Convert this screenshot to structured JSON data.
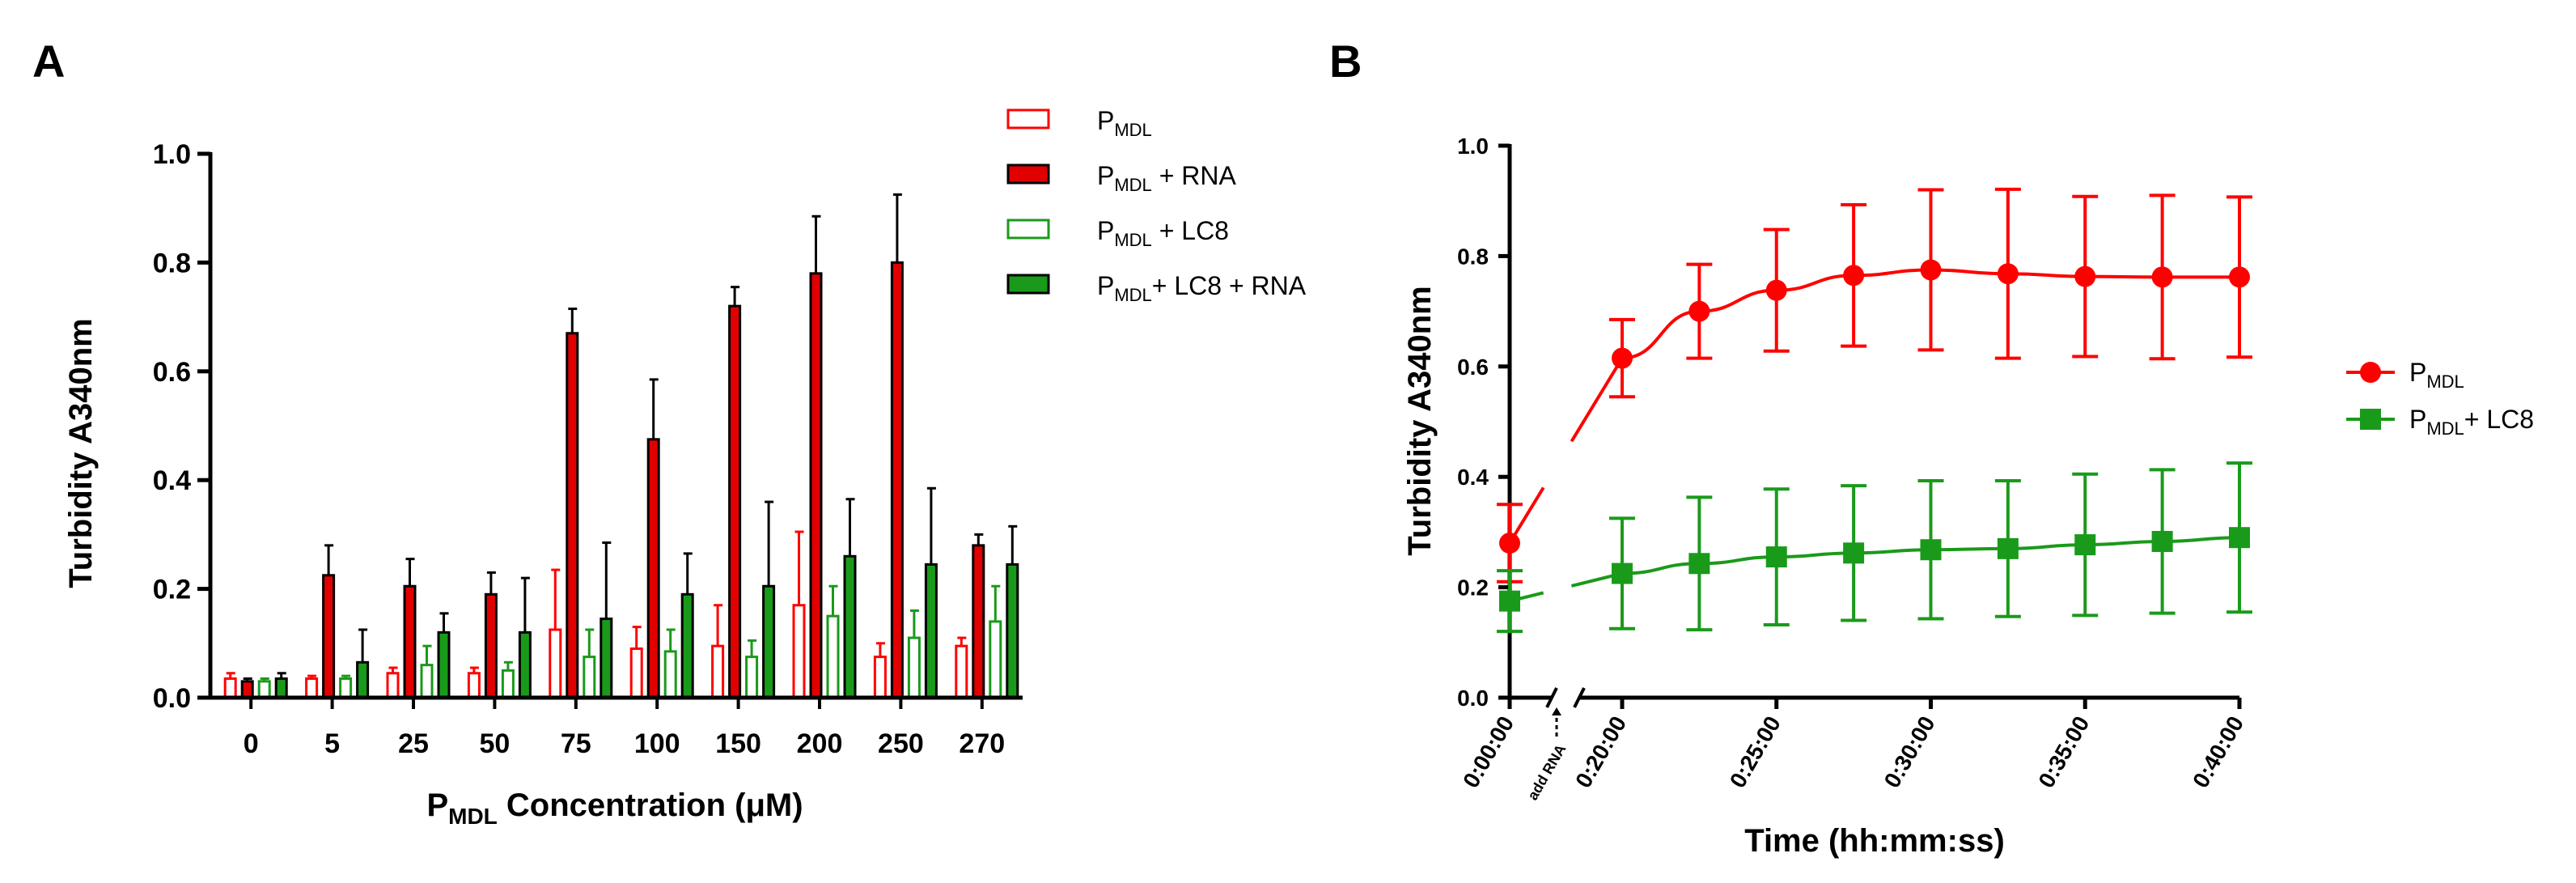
{
  "panel_a_label": "A",
  "panel_b_label": "B",
  "chart_data": [
    {
      "type": "bar",
      "panel": "A",
      "title": "",
      "ylabel": "Turbidity A340nm",
      "xlabel": {
        "main": "P",
        "sub": "MDL",
        "rest": " Concentration (μM)"
      },
      "ylim": [
        0,
        1.0
      ],
      "yticks": [
        "0.0",
        "0.2",
        "0.4",
        "0.6",
        "0.8",
        "1.0"
      ],
      "categories": [
        "0",
        "5",
        "25",
        "50",
        "75",
        "100",
        "150",
        "200",
        "250",
        "270"
      ],
      "series": [
        {
          "name": "P_MDL",
          "label_main": "P",
          "label_sub": "MDL",
          "label_rest": "",
          "color": "#ff0000",
          "filled": false,
          "values": [
            0.035,
            0.035,
            0.045,
            0.045,
            0.125,
            0.09,
            0.095,
            0.17,
            0.075,
            0.095
          ],
          "errors": [
            0.01,
            0.005,
            0.01,
            0.01,
            0.11,
            0.04,
            0.075,
            0.135,
            0.025,
            0.015
          ]
        },
        {
          "name": "P_MDL + RNA",
          "label_main": "P",
          "label_sub": "MDL",
          "label_rest": " + RNA",
          "color": "#e00000",
          "filled": true,
          "values": [
            0.03,
            0.225,
            0.205,
            0.19,
            0.67,
            0.475,
            0.72,
            0.78,
            0.8,
            0.28
          ],
          "errors": [
            0.005,
            0.055,
            0.05,
            0.04,
            0.045,
            0.11,
            0.035,
            0.105,
            0.125,
            0.02
          ]
        },
        {
          "name": "P_MDL + LC8",
          "label_main": "P",
          "label_sub": "MDL",
          "label_rest": " + LC8",
          "color": "#1a9a1a",
          "filled": false,
          "values": [
            0.03,
            0.035,
            0.06,
            0.05,
            0.075,
            0.085,
            0.075,
            0.15,
            0.11,
            0.14
          ],
          "errors": [
            0.005,
            0.005,
            0.035,
            0.015,
            0.05,
            0.04,
            0.03,
            0.055,
            0.05,
            0.065
          ]
        },
        {
          "name": "P_MDL + LC8 + RNA",
          "label_main": "P",
          "label_sub": "MDL",
          "label_rest": "+ LC8 + RNA",
          "color": "#1a9a1a",
          "filled": true,
          "values": [
            0.035,
            0.065,
            0.12,
            0.12,
            0.145,
            0.19,
            0.205,
            0.26,
            0.245,
            0.245
          ],
          "errors": [
            0.01,
            0.06,
            0.035,
            0.1,
            0.14,
            0.075,
            0.155,
            0.105,
            0.14,
            0.07
          ]
        }
      ]
    },
    {
      "type": "line",
      "panel": "B",
      "title": "",
      "ylabel": "Turbidity A340nm",
      "xlabel": "Time (hh:mm:ss)",
      "ylim": [
        0,
        1.0
      ],
      "yticks": [
        "0.0",
        "0.2",
        "0.4",
        "0.6",
        "0.8",
        "1.0"
      ],
      "xticks": [
        "0:00:00",
        "0:20:00",
        "0:25:00",
        "0:30:00",
        "0:35:00",
        "0:40:00"
      ],
      "annotation": "add RNA",
      "x_minutes": [
        0,
        20,
        22.5,
        25,
        27.5,
        30,
        32.5,
        35,
        37.5,
        40
      ],
      "series": [
        {
          "name": "P_MDL",
          "label_main": "P",
          "label_sub": "MDL",
          "label_rest": "",
          "color": "#ff0000",
          "marker": "circle",
          "values": [
            0.28,
            0.615,
            0.7,
            0.738,
            0.765,
            0.775,
            0.768,
            0.763,
            0.762,
            0.762
          ],
          "errors": [
            0.07,
            0.07,
            0.085,
            0.11,
            0.128,
            0.145,
            0.153,
            0.145,
            0.148,
            0.145
          ]
        },
        {
          "name": "P_MDL + LC8",
          "label_main": "P",
          "label_sub": "MDL",
          "label_rest": "+ LC8",
          "color": "#1a9a1a",
          "marker": "square",
          "values": [
            0.175,
            0.225,
            0.243,
            0.255,
            0.262,
            0.268,
            0.27,
            0.277,
            0.283,
            0.29
          ],
          "errors": [
            0.055,
            0.1,
            0.12,
            0.123,
            0.122,
            0.125,
            0.123,
            0.128,
            0.13,
            0.135
          ]
        }
      ]
    }
  ]
}
